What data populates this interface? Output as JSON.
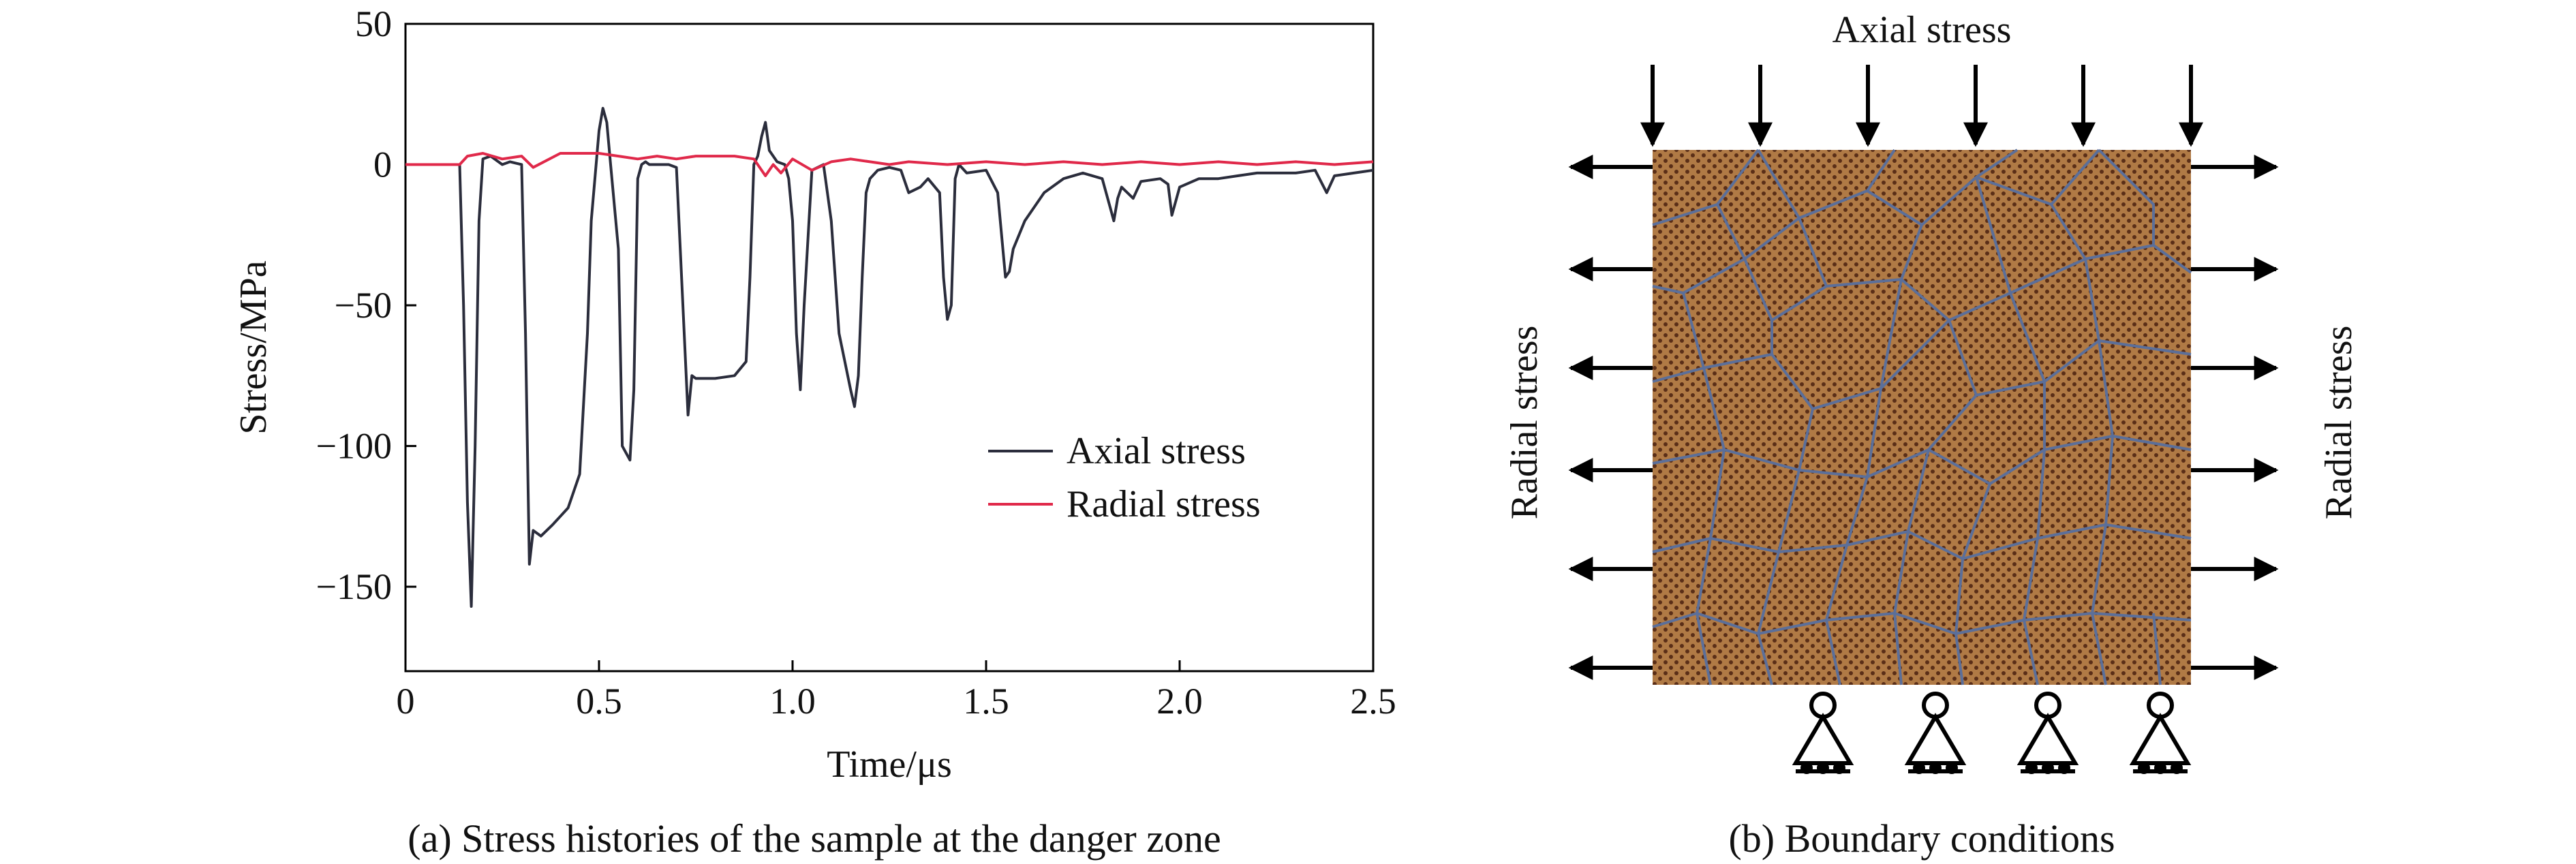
{
  "chart_data": [
    {
      "type": "line",
      "title": "",
      "xlabel": "Time/μs",
      "ylabel": "Stress/MPa",
      "xlim": [
        0,
        2.5
      ],
      "ylim": [
        -180,
        50
      ],
      "xticks": [
        0,
        0.5,
        1.0,
        1.5,
        2.0,
        2.5
      ],
      "xtick_labels": [
        "0",
        "0.5",
        "1.0",
        "1.5",
        "2.0",
        "2.5"
      ],
      "yticks": [
        50,
        0,
        -50,
        -100,
        -150
      ],
      "ytick_labels": [
        "50",
        "0",
        "−50",
        "−100",
        "−150"
      ],
      "legend_position": "center-right",
      "series": [
        {
          "name": "Axial stress",
          "color": "#2b2d3c",
          "x": [
            0,
            0.1,
            0.14,
            0.15,
            0.16,
            0.17,
            0.18,
            0.19,
            0.2,
            0.22,
            0.25,
            0.27,
            0.3,
            0.31,
            0.32,
            0.33,
            0.35,
            0.38,
            0.4,
            0.42,
            0.45,
            0.47,
            0.48,
            0.5,
            0.51,
            0.52,
            0.53,
            0.55,
            0.56,
            0.58,
            0.59,
            0.6,
            0.61,
            0.62,
            0.63,
            0.65,
            0.68,
            0.7,
            0.72,
            0.73,
            0.74,
            0.75,
            0.8,
            0.85,
            0.88,
            0.89,
            0.9,
            0.91,
            0.92,
            0.93,
            0.94,
            0.96,
            0.98,
            0.99,
            1.0,
            1.01,
            1.02,
            1.03,
            1.05,
            1.08,
            1.1,
            1.12,
            1.15,
            1.16,
            1.17,
            1.18,
            1.19,
            1.2,
            1.22,
            1.25,
            1.28,
            1.3,
            1.33,
            1.35,
            1.38,
            1.39,
            1.4,
            1.41,
            1.42,
            1.43,
            1.45,
            1.5,
            1.53,
            1.55,
            1.56,
            1.57,
            1.6,
            1.65,
            1.7,
            1.75,
            1.8,
            1.82,
            1.83,
            1.84,
            1.85,
            1.88,
            1.9,
            1.95,
            1.97,
            1.98,
            2.0,
            2.05,
            2.1,
            2.15,
            2.2,
            2.3,
            2.35,
            2.38,
            2.4,
            2.45,
            2.5
          ],
          "y": [
            0,
            0,
            0,
            -50,
            -120,
            -157,
            -100,
            -20,
            2,
            3,
            0,
            1,
            0,
            -60,
            -142,
            -130,
            -132,
            -128,
            -125,
            -122,
            -110,
            -60,
            -20,
            12,
            20,
            15,
            0,
            -30,
            -100,
            -105,
            -80,
            -5,
            0,
            1,
            0,
            0,
            0,
            -1,
            -60,
            -89,
            -75,
            -76,
            -76,
            -75,
            -70,
            -40,
            0,
            3,
            10,
            15,
            5,
            1,
            0,
            -5,
            -20,
            -60,
            -80,
            -50,
            -2,
            0,
            -20,
            -60,
            -80,
            -86,
            -75,
            -40,
            -10,
            -5,
            -2,
            -1,
            -2,
            -10,
            -8,
            -5,
            -10,
            -40,
            -55,
            -50,
            -5,
            0,
            -3,
            -2,
            -10,
            -40,
            -38,
            -30,
            -20,
            -10,
            -5,
            -3,
            -5,
            -15,
            -20,
            -12,
            -8,
            -12,
            -6,
            -5,
            -7,
            -18,
            -8,
            -5,
            -5,
            -4,
            -3,
            -3,
            -2,
            -10,
            -4,
            -3,
            -2
          ]
        },
        {
          "name": "Radial stress",
          "color": "#e0294a",
          "x": [
            0,
            0.1,
            0.14,
            0.16,
            0.2,
            0.25,
            0.3,
            0.33,
            0.4,
            0.45,
            0.5,
            0.55,
            0.6,
            0.65,
            0.7,
            0.75,
            0.8,
            0.85,
            0.9,
            0.93,
            0.95,
            0.97,
            1.0,
            1.05,
            1.1,
            1.15,
            1.2,
            1.25,
            1.3,
            1.4,
            1.5,
            1.6,
            1.7,
            1.8,
            1.9,
            2.0,
            2.1,
            2.2,
            2.3,
            2.4,
            2.5
          ],
          "y": [
            0,
            0,
            0,
            3,
            4,
            2,
            3,
            -1,
            4,
            4,
            4,
            3,
            2,
            3,
            2,
            3,
            3,
            3,
            2,
            -4,
            0,
            -3,
            2,
            -2,
            1,
            2,
            1,
            0,
            1,
            0,
            1,
            0,
            1,
            0,
            1,
            0,
            1,
            0,
            1,
            0,
            1
          ]
        }
      ]
    }
  ],
  "figure": {
    "caption_a": "(a) Stress histories of the sample at the danger zone",
    "caption_b": "(b) Boundary conditions",
    "axial_stress_label": "Axial stress",
    "radial_stress_left_label": "Radial stress",
    "radial_stress_right_label": "Radial stress",
    "colors": {
      "grain_fill": "#b07a45",
      "grain_boundary": "#5b6f9a",
      "particle_dot": "#5a2e17",
      "arrow": "#000000"
    }
  }
}
